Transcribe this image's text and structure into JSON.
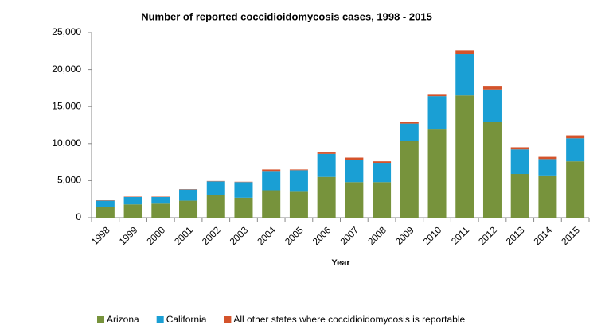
{
  "chart_data": {
    "type": "stacked-bar",
    "title": "Number of reported coccidioidomycosis cases, 1998 - 2015",
    "x_label": "Year",
    "categories": [
      "1998",
      "1999",
      "2000",
      "2001",
      "2002",
      "2003",
      "2004",
      "2005",
      "2006",
      "2007",
      "2008",
      "2009",
      "2010",
      "2011",
      "2012",
      "2013",
      "2014",
      "2015"
    ],
    "series": [
      {
        "name": "Arizona",
        "color": "#77933c",
        "values": [
          1500,
          1800,
          1900,
          2300,
          3100,
          2700,
          3700,
          3500,
          5500,
          4800,
          4800,
          10300,
          11900,
          16500,
          12900,
          5900,
          5700,
          7600
        ]
      },
      {
        "name": "California",
        "color": "#1a9fd4",
        "values": [
          800,
          1000,
          900,
          1500,
          1800,
          2100,
          2600,
          2900,
          3100,
          3000,
          2600,
          2400,
          4500,
          5600,
          4400,
          3300,
          2200,
          3100
        ]
      },
      {
        "name": "All other states where coccidioidomycosis is reportable",
        "color": "#d4532b",
        "values": [
          50,
          50,
          50,
          50,
          50,
          50,
          200,
          100,
          300,
          300,
          200,
          200,
          300,
          500,
          500,
          300,
          300,
          400
        ]
      }
    ],
    "ylim": [
      0,
      25000
    ],
    "yticks": [
      0,
      {
        "value": 5000,
        "label": "5,000"
      },
      {
        "value": 10000,
        "label": "10,000"
      },
      {
        "value": 15000,
        "label": "15,000"
      },
      {
        "value": 20000,
        "label": "20,000"
      },
      {
        "value": 25000,
        "label": "25,000"
      }
    ]
  }
}
